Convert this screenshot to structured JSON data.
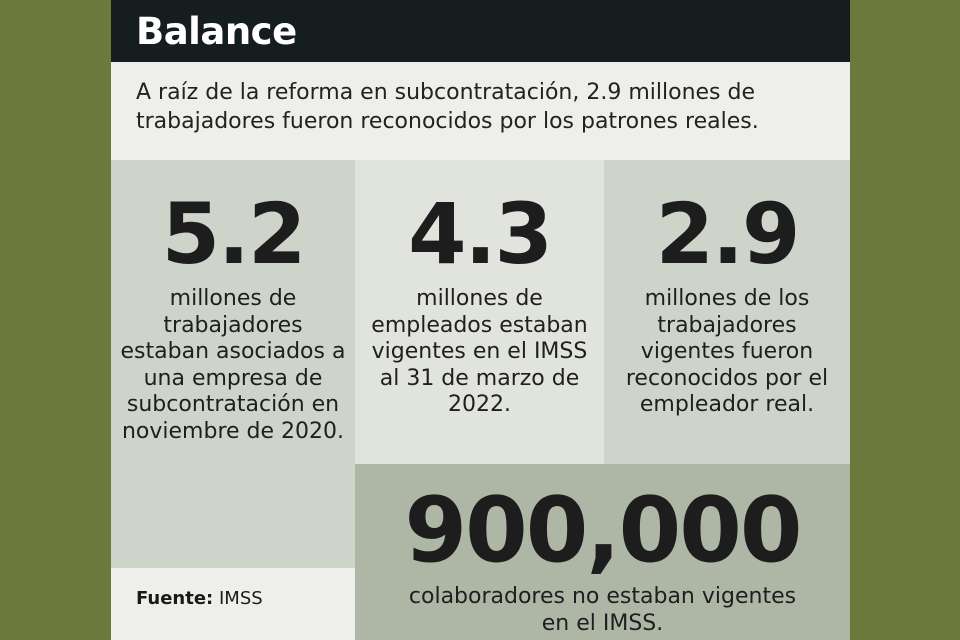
{
  "header": {
    "title": "Balance"
  },
  "intro": {
    "text": "A raíz de la reforma en subcontratación, 2.9 millones de trabajadores fueron reconocidos por los patrones reales."
  },
  "stats": [
    {
      "value": "5.2",
      "description": "millones de trabajadores estaban asociados a una empresa de subcontratación en noviembre de 2020."
    },
    {
      "value": "4.3",
      "description": "millones de empleados estaban vigentes en el IMSS al 31 de marzo de 2022."
    },
    {
      "value": "2.9",
      "description": "millones de los trabajadores vigentes fueron reconocidos por el empleador real."
    },
    {
      "value": "900,000",
      "description": "colaboradores no estaban vigentes en el IMSS."
    }
  ],
  "source": {
    "label": "Fuente:",
    "value": "IMSS"
  },
  "colors": {
    "background": "#6b7a3c",
    "header": "#161d1e",
    "panel_dark": "#cfd4ca",
    "panel_light": "#e1e3dd",
    "panel_gray": "#aeb6a6"
  }
}
